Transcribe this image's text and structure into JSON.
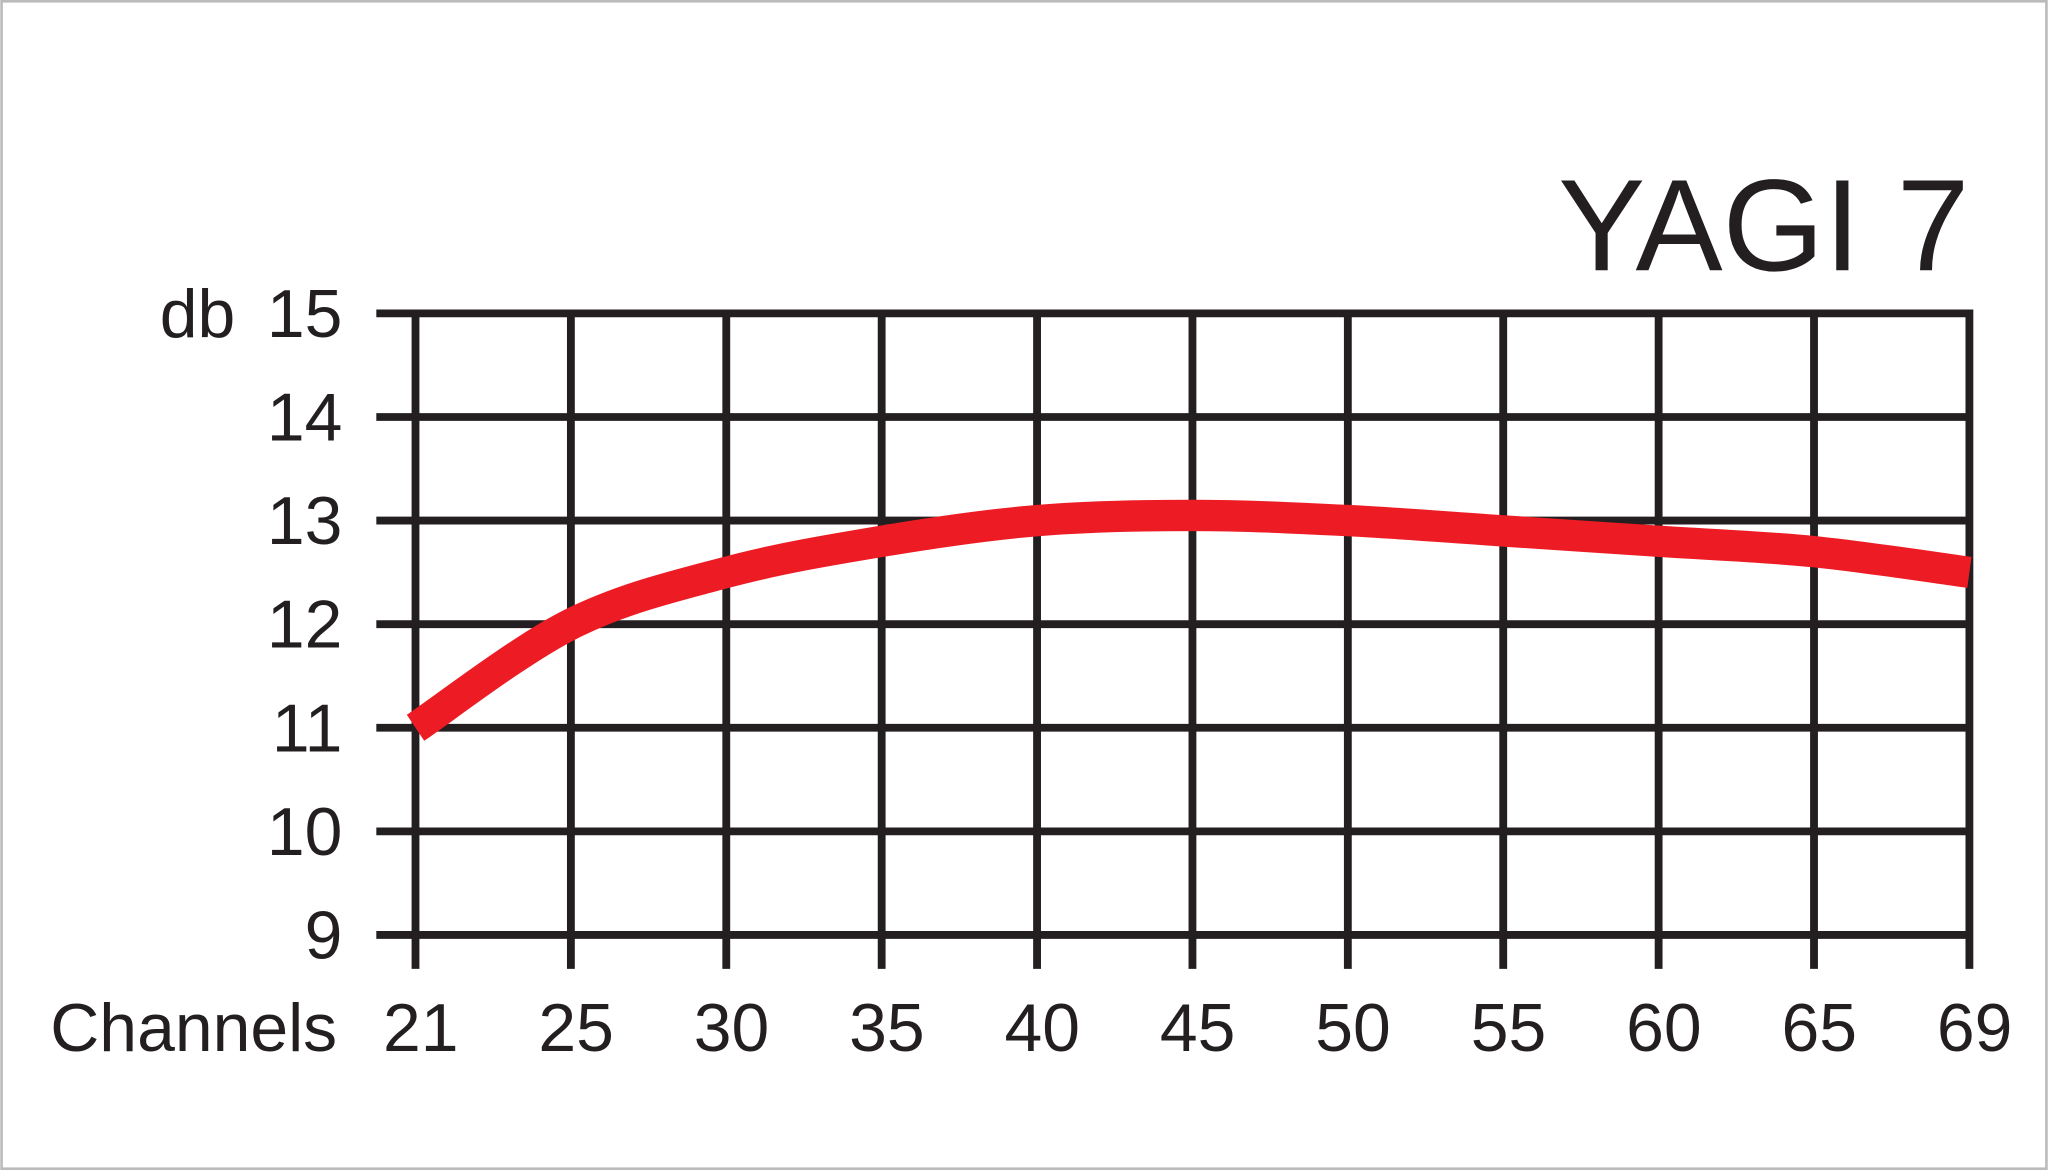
{
  "chart_data": {
    "type": "line",
    "title": "YAGI 7",
    "y_label": "db",
    "x_label": "Channels",
    "categories": [
      "21",
      "25",
      "30",
      "35",
      "40",
      "45",
      "50",
      "55",
      "60",
      "65",
      "69"
    ],
    "values": [
      11.0,
      12.0,
      12.5,
      12.8,
      13.0,
      13.05,
      13.0,
      12.9,
      12.8,
      12.7,
      12.5
    ],
    "color": "#ed1c24",
    "ylim": [
      9,
      15
    ],
    "yticks": [
      9,
      10,
      11,
      12,
      13,
      14,
      15
    ],
    "grid": true
  }
}
